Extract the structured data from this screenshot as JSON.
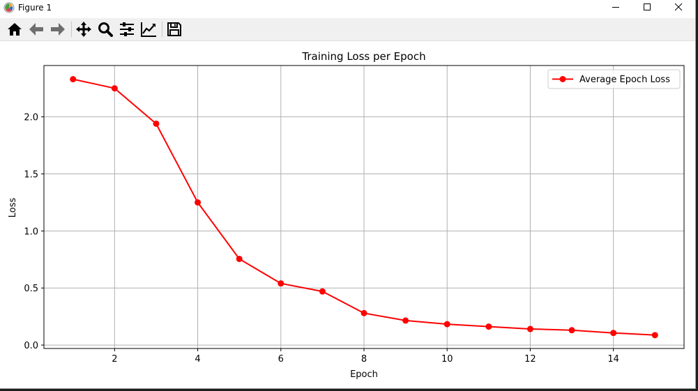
{
  "window": {
    "title": "Figure 1",
    "controls": [
      "minimize-icon",
      "maximize-icon",
      "close-icon"
    ]
  },
  "toolbar": {
    "buttons": [
      {
        "name": "home-button",
        "icon": "home-icon"
      },
      {
        "name": "back-button",
        "icon": "arrow-left-icon"
      },
      {
        "name": "forward-button",
        "icon": "arrow-right-icon"
      },
      {
        "name": "pan-button",
        "icon": "move-icon"
      },
      {
        "name": "zoom-button",
        "icon": "magnifier-icon"
      },
      {
        "name": "configure-subplots-button",
        "icon": "sliders-icon"
      },
      {
        "name": "edit-axis-button",
        "icon": "line-chart-icon"
      },
      {
        "name": "save-button",
        "icon": "floppy-disk-icon"
      }
    ]
  },
  "chart_data": {
    "type": "line",
    "title": "Training Loss per Epoch",
    "xlabel": "Epoch",
    "ylabel": "Loss",
    "xlim": [
      0.3,
      15.7
    ],
    "ylim": [
      -0.03,
      2.45
    ],
    "xticks": [
      2,
      4,
      6,
      8,
      10,
      12,
      14
    ],
    "yticks": [
      0.0,
      0.5,
      1.0,
      1.5,
      2.0
    ],
    "ytick_labels": [
      "0.0",
      "0.5",
      "1.0",
      "1.5",
      "2.0"
    ],
    "grid": true,
    "legend_position": "top-right",
    "series": [
      {
        "name": "Average Epoch Loss",
        "color": "#ff0000",
        "marker": "circle",
        "x": [
          1,
          2,
          3,
          4,
          5,
          6,
          7,
          8,
          9,
          10,
          11,
          12,
          13,
          14,
          15
        ],
        "values": [
          2.33,
          2.25,
          1.94,
          1.25,
          0.755,
          0.54,
          0.47,
          0.28,
          0.215,
          0.183,
          0.162,
          0.141,
          0.13,
          0.106,
          0.087
        ]
      }
    ]
  }
}
